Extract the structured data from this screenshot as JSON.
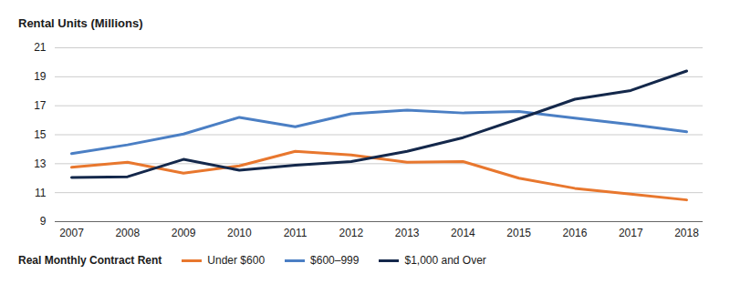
{
  "chart_data": {
    "type": "line",
    "ylabel": "Rental Units (Millions)",
    "legend_title": "Real Monthly Contract Rent",
    "legend": "bottom",
    "grid": true,
    "x": [
      2007,
      2008,
      2009,
      2010,
      2011,
      2012,
      2013,
      2014,
      2015,
      2016,
      2017,
      2018
    ],
    "xlim": [
      2007,
      2018
    ],
    "xticks": [
      2007,
      2008,
      2009,
      2010,
      2011,
      2012,
      2013,
      2014,
      2015,
      2016,
      2017,
      2018
    ],
    "ylim": [
      9,
      21
    ],
    "yticks": [
      9,
      11,
      13,
      15,
      17,
      19,
      21
    ],
    "series": [
      {
        "name": "Under $600",
        "color": "#e8772e",
        "values": [
          12.75,
          13.1,
          12.35,
          12.85,
          13.85,
          13.6,
          13.1,
          13.15,
          12.0,
          11.3,
          10.9,
          10.5
        ]
      },
      {
        "name": "$600–999",
        "color": "#4b7fc4",
        "values": [
          13.7,
          14.3,
          15.05,
          16.2,
          15.55,
          16.45,
          16.7,
          16.5,
          16.6,
          16.15,
          15.7,
          15.2
        ]
      },
      {
        "name": "$1,000 and Over",
        "color": "#14284b",
        "values": [
          12.05,
          12.1,
          13.3,
          12.55,
          12.9,
          13.15,
          13.85,
          14.8,
          16.1,
          17.45,
          18.05,
          19.4
        ]
      }
    ]
  }
}
